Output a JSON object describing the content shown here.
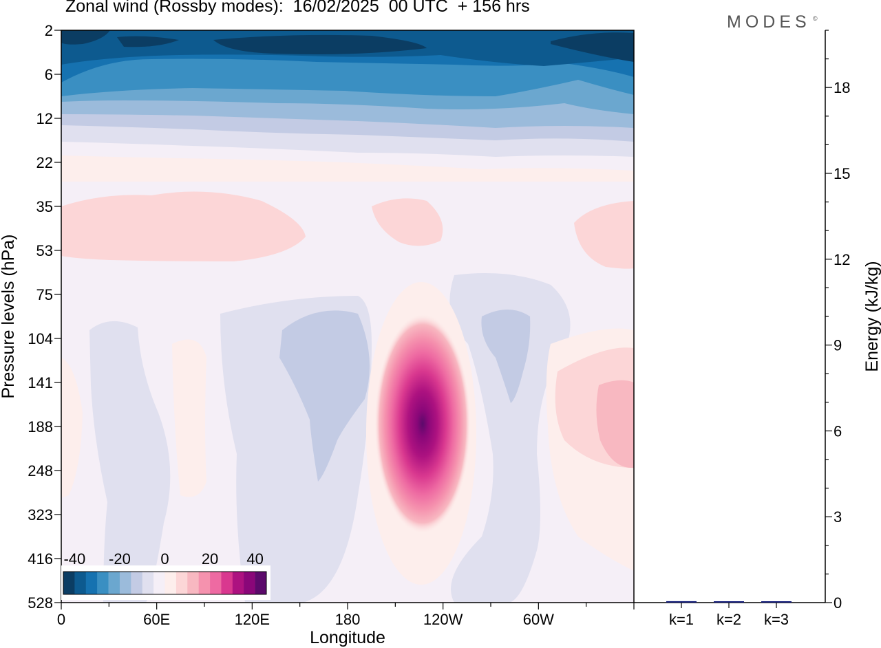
{
  "header": {
    "title": "Zonal wind (Rossby modes):  16/02/2025  00 UTC  + 156 hrs",
    "brand": "MODES",
    "brand_mark": "©"
  },
  "chart_data": [
    {
      "type": "heatmap",
      "xlabel": "Longitude",
      "ylabel": "Pressure levels (hPa)",
      "x_ticks": [
        "0",
        "60E",
        "120E",
        "180",
        "120W",
        "60W"
      ],
      "x_range_deg_east": [
        0,
        360
      ],
      "y_levels_hPa": [
        "2",
        "6",
        "12",
        "22",
        "35",
        "53",
        "75",
        "104",
        "141",
        "188",
        "248",
        "323",
        "416",
        "528"
      ],
      "colorbar": {
        "tick_labels": [
          "-40",
          "-20",
          "0",
          "20",
          "40"
        ],
        "range": [
          -45,
          45
        ],
        "interval": 5,
        "colors": [
          "#0b3d63",
          "#0d5a8f",
          "#1672b0",
          "#3a8fc2",
          "#6ba7cf",
          "#9bbbdb",
          "#c3cbe4",
          "#e0e0ef",
          "#f5eff7",
          "#fdeeec",
          "#fcd6d7",
          "#f8b8c1",
          "#f592ae",
          "#ee6aa2",
          "#d9388f",
          "#ad1280",
          "#8a0779",
          "#5c0a6b"
        ]
      },
      "features": [
        {
          "lon": 113,
          "level": "188",
          "value": 40,
          "note": "jet maximum"
        },
        {
          "lon": 180,
          "level": "2",
          "value": -40
        },
        {
          "lon": 155,
          "level": "141",
          "value": -10
        },
        {
          "lon": 290,
          "level": "104",
          "value": -10
        },
        {
          "lon": 347,
          "level": "188",
          "value": 15
        },
        {
          "lon": 60,
          "level": "53",
          "value": 10
        },
        {
          "lon": 200,
          "level": "35",
          "value": 10
        }
      ]
    },
    {
      "type": "bar",
      "categories": [
        "k=1",
        "k=2",
        "k=3"
      ],
      "values": [
        0.05,
        0.02,
        0.04
      ],
      "ylabel": "Energy (kJ/kg)",
      "ylim": [
        0,
        20
      ],
      "y_ticks": [
        "0",
        "3",
        "6",
        "9",
        "12",
        "15",
        "18"
      ],
      "bar_color": "#1a237e"
    }
  ]
}
